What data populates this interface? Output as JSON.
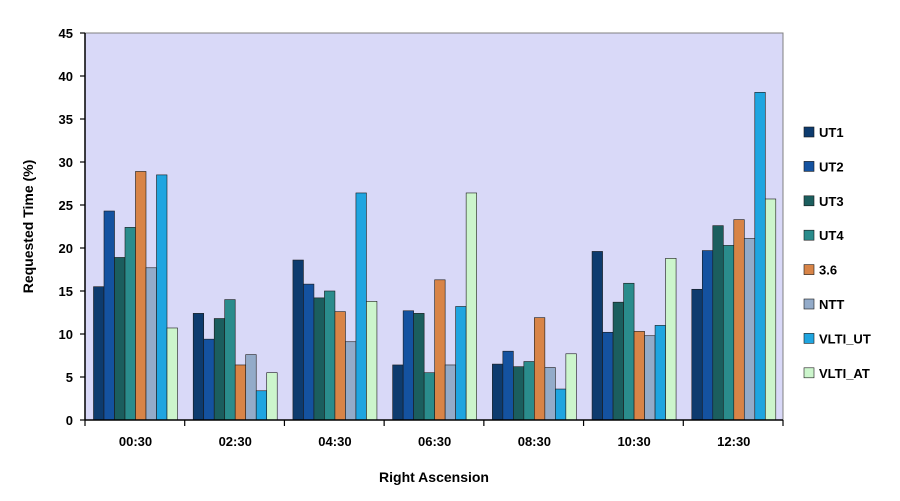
{
  "chart_data": {
    "type": "bar",
    "title": "",
    "xlabel": "Right Ascension",
    "ylabel": "Requested Time (%)",
    "ylim": [
      0,
      45
    ],
    "yticks": [
      0,
      5,
      10,
      15,
      20,
      25,
      30,
      35,
      40,
      45
    ],
    "grid": false,
    "legend_position": "right",
    "categories": [
      "00:30",
      "02:30",
      "04:30",
      "06:30",
      "08:30",
      "10:30",
      "12:30"
    ],
    "series": [
      {
        "name": "UT1",
        "color": "#0d3b6e",
        "values": [
          15.5,
          12.4,
          18.6,
          6.4,
          6.5,
          19.6,
          15.2
        ]
      },
      {
        "name": "UT2",
        "color": "#1452a0",
        "values": [
          24.3,
          9.4,
          15.8,
          12.7,
          8.0,
          10.2,
          19.7
        ]
      },
      {
        "name": "UT3",
        "color": "#1b5e5e",
        "values": [
          18.9,
          11.8,
          14.2,
          12.4,
          6.2,
          13.7,
          22.6
        ]
      },
      {
        "name": "UT4",
        "color": "#2a8c8c",
        "values": [
          22.4,
          14.0,
          15.0,
          5.5,
          6.8,
          15.9,
          20.3
        ]
      },
      {
        "name": "3.6",
        "color": "#d88447",
        "values": [
          28.9,
          6.4,
          12.6,
          16.3,
          11.9,
          10.3,
          23.3
        ]
      },
      {
        "name": "NTT",
        "color": "#93abc9",
        "values": [
          17.7,
          7.6,
          9.1,
          6.4,
          6.1,
          9.8,
          21.1
        ]
      },
      {
        "name": "VLTI_UT",
        "color": "#1fa5e0",
        "values": [
          28.5,
          3.4,
          26.4,
          13.2,
          3.6,
          11.0,
          38.1
        ]
      },
      {
        "name": "VLTI_AT",
        "color": "#ccf5cc",
        "values": [
          10.7,
          5.5,
          13.8,
          26.4,
          7.7,
          18.8,
          25.7
        ]
      }
    ]
  },
  "colors": {
    "plot_background": "#d9d9f8",
    "bar_stroke": "#1a1a1a"
  }
}
